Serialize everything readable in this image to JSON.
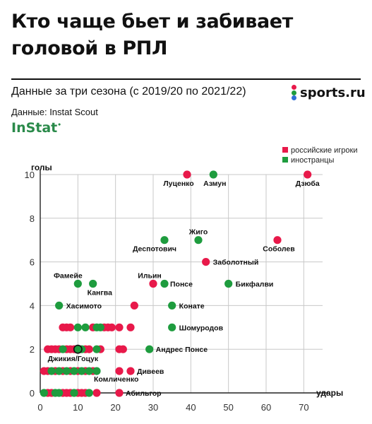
{
  "header": {
    "title_line1": "Кто чаще бьет и забивает",
    "title_line2": "головой в РПЛ",
    "subtitle": "Данные за три сезона (с 2019/20 по 2021/22)",
    "source": "Данные: Instat Scout",
    "instat_logo": "InStat",
    "brand": "sports.ru"
  },
  "colors": {
    "russian": "#e8194a",
    "foreign": "#1e9c3e",
    "brand_red": "#e8194a",
    "brand_green": "#1e9c3e",
    "brand_blue": "#2f6fd6"
  },
  "chart_data": {
    "type": "scatter",
    "xlabel": "удары",
    "ylabel": "голы",
    "xlim": [
      0,
      75
    ],
    "ylim": [
      0,
      10
    ],
    "xticks": [
      0,
      10,
      20,
      30,
      40,
      50,
      60,
      70
    ],
    "yticks": [
      0,
      2,
      4,
      6,
      8,
      10
    ],
    "grid": true,
    "legend_position": "top-right",
    "series": [
      {
        "name": "российские игроки",
        "color_key": "russian",
        "points": [
          {
            "x": 39,
            "y": 10,
            "label": "Луценко"
          },
          {
            "x": 71,
            "y": 10,
            "label": "Дзюба"
          },
          {
            "x": 63,
            "y": 7,
            "label": "Соболев"
          },
          {
            "x": 44,
            "y": 6,
            "label": "Заболотный"
          },
          {
            "x": 30,
            "y": 5,
            "label": "Ильин"
          },
          {
            "x": 25,
            "y": 4
          },
          {
            "x": 6,
            "y": 3
          },
          {
            "x": 7,
            "y": 3
          },
          {
            "x": 8,
            "y": 3
          },
          {
            "x": 14,
            "y": 3
          },
          {
            "x": 17,
            "y": 3
          },
          {
            "x": 18,
            "y": 3
          },
          {
            "x": 19,
            "y": 3
          },
          {
            "x": 21,
            "y": 3
          },
          {
            "x": 24,
            "y": 3
          },
          {
            "x": 2,
            "y": 2
          },
          {
            "x": 3,
            "y": 2
          },
          {
            "x": 4,
            "y": 2
          },
          {
            "x": 5,
            "y": 2
          },
          {
            "x": 7,
            "y": 2
          },
          {
            "x": 8,
            "y": 2
          },
          {
            "x": 9,
            "y": 2
          },
          {
            "x": 12,
            "y": 2
          },
          {
            "x": 13,
            "y": 2
          },
          {
            "x": 16,
            "y": 2
          },
          {
            "x": 21,
            "y": 2
          },
          {
            "x": 22,
            "y": 2
          },
          {
            "x": 1,
            "y": 1
          },
          {
            "x": 2,
            "y": 1
          },
          {
            "x": 4,
            "y": 1
          },
          {
            "x": 6,
            "y": 1
          },
          {
            "x": 8,
            "y": 1
          },
          {
            "x": 10,
            "y": 1
          },
          {
            "x": 12,
            "y": 1
          },
          {
            "x": 14,
            "y": 1
          },
          {
            "x": 21,
            "y": 1
          },
          {
            "x": 24,
            "y": 1,
            "label": "Дивеев"
          },
          {
            "x": 2,
            "y": 0
          },
          {
            "x": 3,
            "y": 0
          },
          {
            "x": 6,
            "y": 0
          },
          {
            "x": 7,
            "y": 0
          },
          {
            "x": 8,
            "y": 0
          },
          {
            "x": 10,
            "y": 0
          },
          {
            "x": 11,
            "y": 0
          },
          {
            "x": 12,
            "y": 0
          },
          {
            "x": 15,
            "y": 0
          },
          {
            "x": 21,
            "y": 0,
            "label": "Абильгор"
          }
        ]
      },
      {
        "name": "иностранцы",
        "color_key": "foreign",
        "points": [
          {
            "x": 46,
            "y": 10,
            "label": "Азмун"
          },
          {
            "x": 33,
            "y": 7,
            "label": "Деспотович"
          },
          {
            "x": 42,
            "y": 7,
            "label": "Жиго"
          },
          {
            "x": 10,
            "y": 5,
            "label": "Фамейе"
          },
          {
            "x": 14,
            "y": 5,
            "label": "Кангва"
          },
          {
            "x": 33,
            "y": 5,
            "label": "Понсе"
          },
          {
            "x": 50,
            "y": 5,
            "label": "Бикфалви"
          },
          {
            "x": 5,
            "y": 4,
            "label": "Хасимото"
          },
          {
            "x": 35,
            "y": 4,
            "label": "Конате"
          },
          {
            "x": 35,
            "y": 3,
            "label": "Шомуродов"
          },
          {
            "x": 10,
            "y": 3
          },
          {
            "x": 12,
            "y": 3
          },
          {
            "x": 15,
            "y": 3
          },
          {
            "x": 16,
            "y": 3
          },
          {
            "x": 29,
            "y": 2,
            "label": "Андрес Понсе"
          },
          {
            "x": 6,
            "y": 2
          },
          {
            "x": 11,
            "y": 2
          },
          {
            "x": 15,
            "y": 2
          },
          {
            "x": 10,
            "y": 2,
            "label": "Джикия/Гоцук",
            "highlight": true
          },
          {
            "x": 3,
            "y": 1
          },
          {
            "x": 5,
            "y": 1
          },
          {
            "x": 7,
            "y": 1
          },
          {
            "x": 9,
            "y": 1
          },
          {
            "x": 11,
            "y": 1
          },
          {
            "x": 13,
            "y": 1
          },
          {
            "x": 15,
            "y": 1,
            "label": "Комличенко"
          },
          {
            "x": 1,
            "y": 0
          },
          {
            "x": 4,
            "y": 0
          },
          {
            "x": 5,
            "y": 0
          },
          {
            "x": 9,
            "y": 0
          },
          {
            "x": 13,
            "y": 0
          }
        ]
      }
    ]
  }
}
